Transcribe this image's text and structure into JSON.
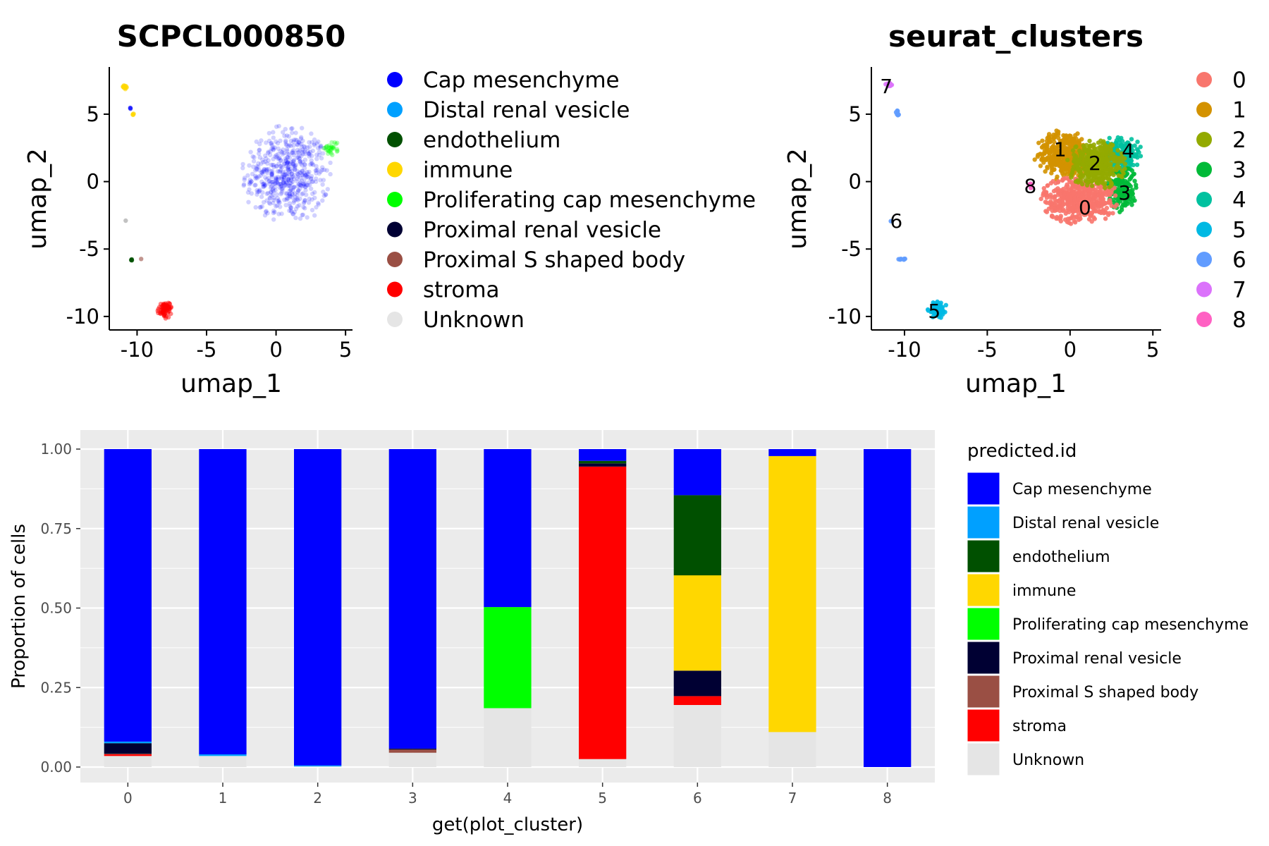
{
  "chart_data": [
    {
      "type": "scatter",
      "title": "SCPCL000850",
      "xlabel": "umap_1",
      "ylabel": "umap_2",
      "xlim": [
        -12,
        5.5
      ],
      "ylim": [
        -11,
        8.5
      ],
      "x_ticks": [
        -10,
        -5,
        0,
        5
      ],
      "y_ticks": [
        5,
        0,
        -5,
        -10
      ],
      "x_tick_labels": [
        "-10",
        "-5",
        "0",
        "5"
      ],
      "y_tick_labels": [
        "5",
        "0",
        "-5",
        "-10"
      ],
      "grid": false,
      "legend_position": "right",
      "legend": [
        {
          "label": "Cap mesenchyme",
          "color": "#0000FF"
        },
        {
          "label": "Distal renal vesicle",
          "color": "#00A0FF"
        },
        {
          "label": "endothelium",
          "color": "#005000"
        },
        {
          "label": "immune",
          "color": "#FFD700"
        },
        {
          "label": "Proliferating cap mesenchyme",
          "color": "#00FF00"
        },
        {
          "label": "Proximal renal vesicle",
          "color": "#000033"
        },
        {
          "label": "Proximal S shaped body",
          "color": "#9A4F44"
        },
        {
          "label": "stroma",
          "color": "#FF0000"
        },
        {
          "label": "Unknown",
          "color": "#E5E5E5"
        }
      ],
      "groups": [
        {
          "label": "Cap mesenchyme",
          "color": "#0000FF",
          "center": [
            0.8,
            0.5
          ],
          "radius": [
            3.3,
            3.8
          ],
          "n": 550,
          "alpha": 0.18
        },
        {
          "label": "Proliferating cap mesenchyme",
          "color": "#00FF00",
          "center": [
            4.0,
            2.5
          ],
          "radius": [
            0.6,
            0.6
          ],
          "n": 30,
          "alpha": 0.3
        },
        {
          "label": "stroma",
          "color": "#FF0000",
          "center": [
            -8.0,
            -9.5
          ],
          "radius": [
            0.55,
            0.65
          ],
          "n": 70,
          "alpha": 0.5
        },
        {
          "label": "immune",
          "color": "#FFD700",
          "center": [
            -10.9,
            7.0
          ],
          "radius": [
            0.25,
            0.2
          ],
          "n": 14,
          "alpha": 0.6
        },
        {
          "label": "immune",
          "color": "#FFD700",
          "center": [
            -10.3,
            5.0
          ],
          "radius": [
            0.12,
            0.12
          ],
          "n": 4,
          "alpha": 0.6
        },
        {
          "label": "Cap mesenchyme",
          "color": "#0000FF",
          "center": [
            -10.5,
            5.4
          ],
          "radius": [
            0.1,
            0.1
          ],
          "n": 3,
          "alpha": 0.5
        },
        {
          "label": "Unknown",
          "color": "#999999",
          "center": [
            -10.8,
            -2.9
          ],
          "radius": [
            0.05,
            0.05
          ],
          "n": 1,
          "alpha": 0.6
        },
        {
          "label": "endothelium",
          "color": "#005000",
          "center": [
            -10.4,
            -5.8
          ],
          "radius": [
            0.08,
            0.05
          ],
          "n": 3,
          "alpha": 0.8
        },
        {
          "label": "Proximal S shaped body",
          "color": "#9A4F44",
          "center": [
            -9.7,
            -5.7
          ],
          "radius": [
            0.05,
            0.05
          ],
          "n": 1,
          "alpha": 0.6
        }
      ]
    },
    {
      "type": "scatter",
      "title": "seurat_clusters",
      "xlabel": "umap_1",
      "ylabel": "umap_2",
      "xlim": [
        -12,
        5.5
      ],
      "ylim": [
        -11,
        8.5
      ],
      "x_ticks": [
        -10,
        -5,
        0,
        5
      ],
      "y_ticks": [
        5,
        0,
        -5,
        -10
      ],
      "x_tick_labels": [
        "-10",
        "-5",
        "0",
        "5"
      ],
      "y_tick_labels": [
        "5",
        "0",
        "-5",
        "-10"
      ],
      "grid": false,
      "legend_position": "right",
      "legend": [
        {
          "label": "0",
          "color": "#F8766D"
        },
        {
          "label": "1",
          "color": "#D39200"
        },
        {
          "label": "2",
          "color": "#93AA00"
        },
        {
          "label": "3",
          "color": "#00BA38"
        },
        {
          "label": "4",
          "color": "#00C19F"
        },
        {
          "label": "5",
          "color": "#00B9E3"
        },
        {
          "label": "6",
          "color": "#619CFF"
        },
        {
          "label": "7",
          "color": "#DB72FB"
        },
        {
          "label": "8",
          "color": "#FF61C3"
        }
      ],
      "groups": [
        {
          "label": "1",
          "color": "#D39200",
          "center": [
            -0.3,
            2.0
          ],
          "radius": [
            1.9,
            1.9
          ],
          "n": 380
        },
        {
          "label": "4",
          "color": "#00C19F",
          "center": [
            3.1,
            2.0
          ],
          "radius": [
            1.3,
            1.5
          ],
          "n": 220
        },
        {
          "label": "3",
          "color": "#00BA38",
          "center": [
            3.1,
            -0.5
          ],
          "radius": [
            1.0,
            1.8
          ],
          "n": 200
        },
        {
          "label": "0",
          "color": "#F8766D",
          "center": [
            0.6,
            -1.3
          ],
          "radius": [
            2.4,
            1.9
          ],
          "n": 500
        },
        {
          "label": "2",
          "color": "#93AA00",
          "center": [
            1.6,
            1.3
          ],
          "radius": [
            1.8,
            1.9
          ],
          "n": 420
        },
        {
          "label": "8",
          "color": "#FF61C3",
          "center": [
            -2.4,
            -0.3
          ],
          "radius": [
            0.2,
            0.2
          ],
          "n": 6
        },
        {
          "label": "5",
          "color": "#00B9E3",
          "center": [
            -8.0,
            -9.5
          ],
          "radius": [
            0.6,
            0.65
          ],
          "n": 110
        },
        {
          "label": "7",
          "color": "#DB72FB",
          "center": [
            -10.9,
            7.2
          ],
          "radius": [
            0.25,
            0.15
          ],
          "n": 16
        },
        {
          "label": "6",
          "color": "#619CFF",
          "center": [
            -10.4,
            5.1
          ],
          "radius": [
            0.15,
            0.25
          ],
          "n": 9
        },
        {
          "label": "6",
          "color": "#619CFF",
          "center": [
            -10.8,
            -2.9
          ],
          "radius": [
            0.05,
            0.05
          ],
          "n": 1
        },
        {
          "label": "6",
          "color": "#619CFF",
          "center": [
            -10.2,
            -5.75
          ],
          "radius": [
            0.3,
            0.06
          ],
          "n": 8
        }
      ],
      "cluster_labels": [
        {
          "label": "0",
          "x": 0.9,
          "y": -1.9
        },
        {
          "label": "1",
          "x": -0.6,
          "y": 2.4
        },
        {
          "label": "2",
          "x": 1.5,
          "y": 1.4
        },
        {
          "label": "3",
          "x": 3.3,
          "y": -0.8
        },
        {
          "label": "4",
          "x": 3.5,
          "y": 2.3
        },
        {
          "label": "5",
          "x": -8.2,
          "y": -9.6
        },
        {
          "label": "6",
          "x": -10.5,
          "y": -2.9
        },
        {
          "label": "7",
          "x": -11.1,
          "y": 7.1
        },
        {
          "label": "8",
          "x": -2.4,
          "y": -0.3
        }
      ]
    },
    {
      "type": "bar",
      "stacked": true,
      "xlabel": "get(plot_cluster)",
      "ylabel": "Proportion of cells",
      "ylim": [
        0,
        1
      ],
      "y_ticks": [
        0,
        0.25,
        0.5,
        0.75,
        1
      ],
      "y_tick_labels": [
        "0.00",
        "0.25",
        "0.50",
        "0.75",
        "1.00"
      ],
      "grid": true,
      "legend_title": "predicted.id",
      "legend_position": "right",
      "categories": [
        "0",
        "1",
        "2",
        "3",
        "4",
        "5",
        "6",
        "7",
        "8"
      ],
      "series": [
        {
          "name": "Unknown",
          "color": "#E5E5E5",
          "values": [
            0.035,
            0.035,
            0.002,
            0.045,
            0.185,
            0.025,
            0.195,
            0.11,
            0.0
          ]
        },
        {
          "name": "stroma",
          "color": "#FF0000",
          "values": [
            0.005,
            0.0,
            0.0,
            0.0,
            0.0,
            0.92,
            0.028,
            0.0,
            0.0
          ]
        },
        {
          "name": "Proximal S shaped body",
          "color": "#9A4F44",
          "values": [
            0.002,
            0.0,
            0.0,
            0.01,
            0.0,
            0.0,
            0.0,
            0.0,
            0.0
          ]
        },
        {
          "name": "Proximal renal vesicle",
          "color": "#000033",
          "values": [
            0.033,
            0.0,
            0.0,
            0.003,
            0.0,
            0.01,
            0.08,
            0.0,
            0.0
          ]
        },
        {
          "name": "Proliferating cap mesenchyme",
          "color": "#00FF00",
          "values": [
            0.0,
            0.0,
            0.0,
            0.0,
            0.318,
            0.0,
            0.0,
            0.0,
            0.0
          ]
        },
        {
          "name": "immune",
          "color": "#FFD700",
          "values": [
            0.0,
            0.0,
            0.0,
            0.0,
            0.0,
            0.0,
            0.3,
            0.868,
            0.0
          ]
        },
        {
          "name": "endothelium",
          "color": "#005000",
          "values": [
            0.0,
            0.0,
            0.0,
            0.0,
            0.0,
            0.008,
            0.252,
            0.0,
            0.0
          ]
        },
        {
          "name": "Distal renal vesicle",
          "color": "#00A0FF",
          "values": [
            0.005,
            0.005,
            0.003,
            0.0,
            0.0,
            0.0,
            0.0,
            0.0,
            0.0
          ]
        },
        {
          "name": "Cap mesenchyme",
          "color": "#0000FF",
          "values": [
            0.92,
            0.96,
            0.995,
            0.942,
            0.497,
            0.037,
            0.145,
            0.022,
            1.0
          ]
        }
      ],
      "legend": [
        {
          "label": "Cap mesenchyme",
          "color": "#0000FF"
        },
        {
          "label": "Distal renal vesicle",
          "color": "#00A0FF"
        },
        {
          "label": "endothelium",
          "color": "#005000"
        },
        {
          "label": "immune",
          "color": "#FFD700"
        },
        {
          "label": "Proliferating cap mesenchyme",
          "color": "#00FF00"
        },
        {
          "label": "Proximal renal vesicle",
          "color": "#000033"
        },
        {
          "label": "Proximal S shaped body",
          "color": "#9A4F44"
        },
        {
          "label": "stroma",
          "color": "#FF0000"
        },
        {
          "label": "Unknown",
          "color": "#E5E5E5"
        }
      ]
    }
  ]
}
